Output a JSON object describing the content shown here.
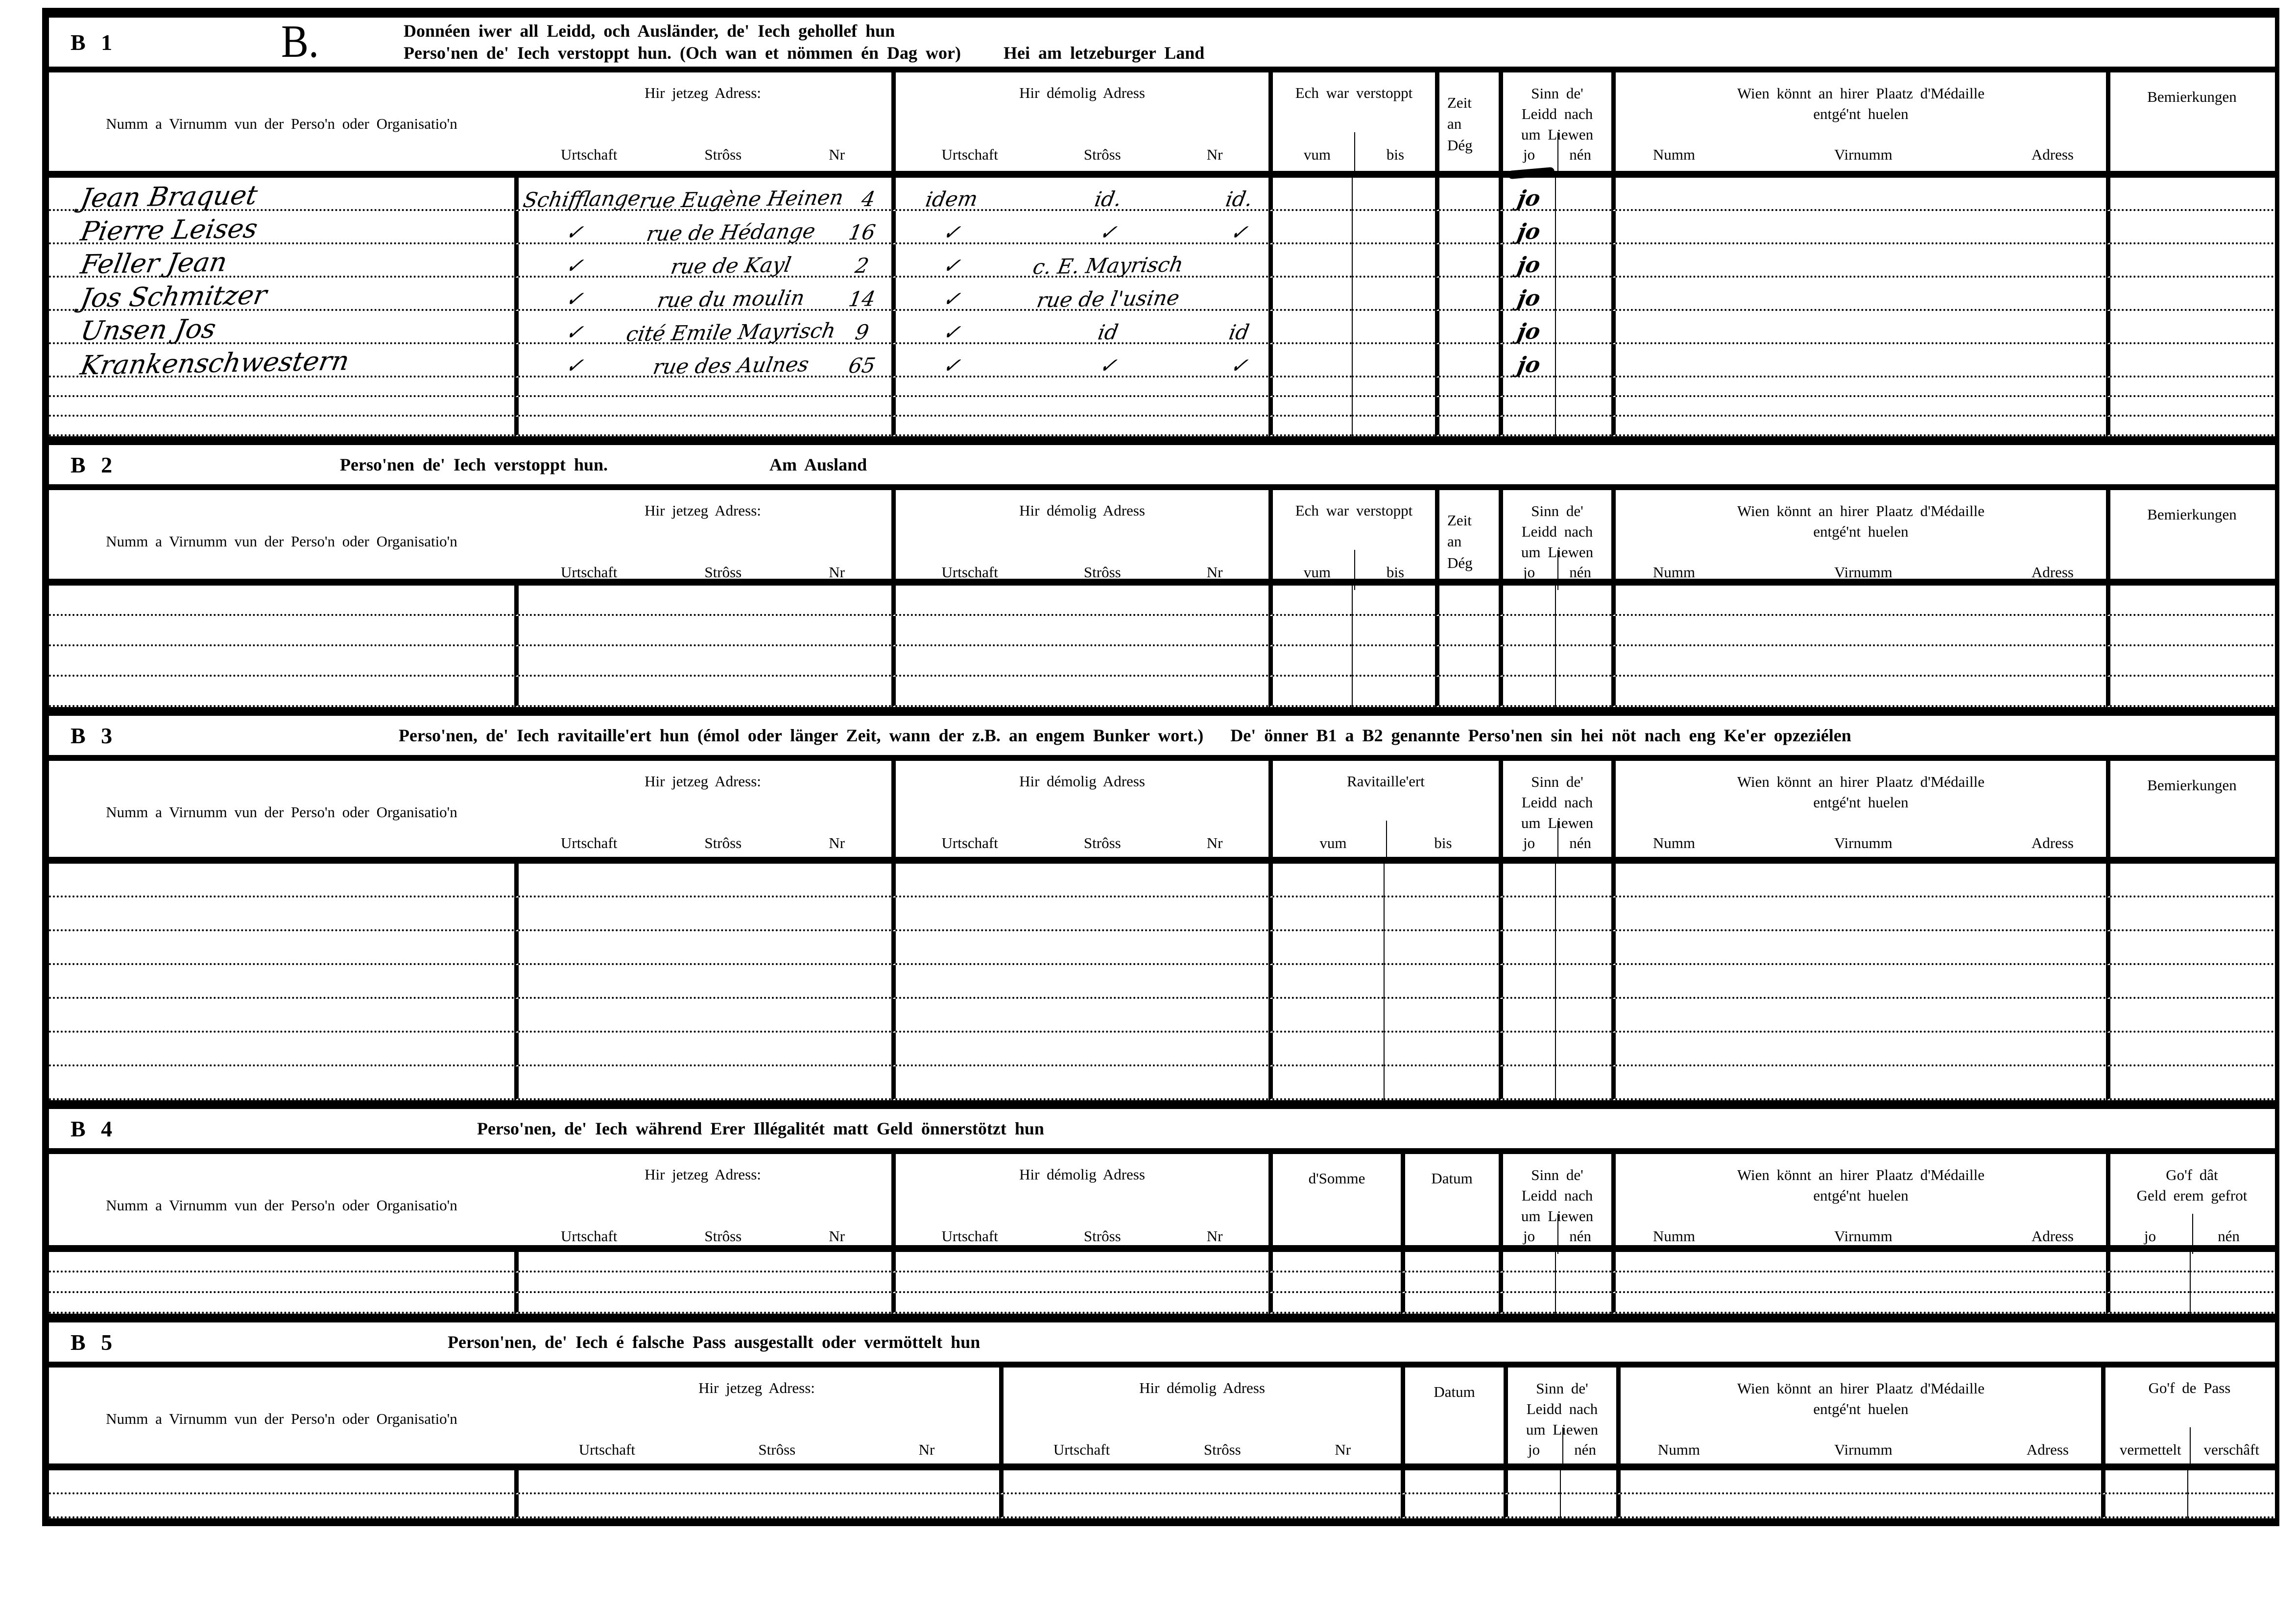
{
  "document": {
    "headers": {
      "name": "Numm a Virnumm vun der Perso'n oder Organisatio'n",
      "jetzeg": "Hir jetzeg Adress:",
      "demolig": "Hir démolig Adress",
      "urtschaft": "Urtschaft",
      "stross": "Strôss",
      "nr": "Nr",
      "verstoppt": "Ech war verstoppt",
      "vum": "vum",
      "bis": "bis",
      "zeit1": "Zeit",
      "zeit2": "an",
      "zeit3": "Dég",
      "sinn1": "Sinn de'",
      "sinn2": "Leidd nach",
      "sinn3": "um Liewen",
      "jo": "jo",
      "nen": "nén",
      "wien1": "Wien könnt an hirer Plaatz d'Médaille",
      "wien2": "entgé'nt huelen",
      "numm": "Numm",
      "virnumm": "Virnumm",
      "adress": "Adress",
      "bem": "Bemierkungen",
      "ravitailleert": "Ravitaille'ert",
      "somme": "d'Somme",
      "datum": "Datum",
      "gof_geld1": "Go'f dât",
      "gof_geld2": "Geld erem gefrot",
      "gof_pass": "Go'f de Pass",
      "vermettelt": "vermettelt",
      "verschaft": "verschâft"
    },
    "sections": {
      "b1": {
        "label": "B 1",
        "big_letter": "B.",
        "title_line1": "Donnéen iwer all Leidd, och Ausländer, de' Iech gehollef hun",
        "title_line2": "Perso'nen de' Iech verstoppt hun. (Och wan et nömmen én Dag wor)",
        "title_suffix": "Hei am letzeburger Land"
      },
      "b2": {
        "label": "B 2",
        "title": "Perso'nen de' Iech verstoppt hun.",
        "subtitle": "Am Ausland"
      },
      "b3": {
        "label": "B 3",
        "title": "Perso'nen, de' Iech ravitaille'ert hun (émol oder länger Zeit, wann der z.B. an engem Bunker wort.)",
        "title2": "De' önner B1 a B2 genannte Perso'nen sin hei nöt nach eng Ke'er opzeziélen"
      },
      "b4": {
        "label": "B 4",
        "title": "Perso'nen, de' Iech während Erer Illégalitét matt Geld önnerstötzt hun"
      },
      "b5": {
        "label": "B 5",
        "title": "Person'nen, de' Iech é falsche Pass ausgestallt oder vermöttelt hun"
      }
    },
    "entries": [
      {
        "name": "Jean Braquet",
        "jetzeg_urtschaft": "Schifflange",
        "jetzeg_stross": "rue Eugène Heinen",
        "jetzeg_nr": "4",
        "demolig_urtschaft": "idem",
        "demolig_stross": "id.",
        "demolig_nr": "id.",
        "liewen": "jo"
      },
      {
        "name": "Pierre Leises",
        "jetzeg_urtschaft": "✓",
        "jetzeg_stross": "rue de Hédange",
        "jetzeg_nr": "16",
        "demolig_urtschaft": "✓",
        "demolig_stross": "✓",
        "demolig_nr": "✓",
        "liewen": "jo"
      },
      {
        "name": "Feller Jean",
        "jetzeg_urtschaft": "✓",
        "jetzeg_stross": "rue de Kayl",
        "jetzeg_nr": "2",
        "demolig_urtschaft": "✓",
        "demolig_stross": "c. E. Mayrisch",
        "demolig_nr": "",
        "liewen": "jo"
      },
      {
        "name": "Jos Schmitzer",
        "jetzeg_urtschaft": "✓",
        "jetzeg_stross": "rue du moulin",
        "jetzeg_nr": "14",
        "demolig_urtschaft": "✓",
        "demolig_stross": "rue de l'usine",
        "demolig_nr": "",
        "liewen": "jo"
      },
      {
        "name": "Unsen Jos",
        "jetzeg_urtschaft": "✓",
        "jetzeg_stross": "cité Emile Mayrisch",
        "jetzeg_nr": "9",
        "demolig_urtschaft": "✓",
        "demolig_stross": "id",
        "demolig_nr": "id",
        "liewen": "jo"
      },
      {
        "name": "Krankenschwestern",
        "jetzeg_urtschaft": "✓",
        "jetzeg_stross": "rue des Aulnes",
        "jetzeg_nr": "65",
        "demolig_urtschaft": "✓",
        "demolig_stross": "✓",
        "demolig_nr": "✓",
        "liewen": "jo"
      }
    ]
  }
}
